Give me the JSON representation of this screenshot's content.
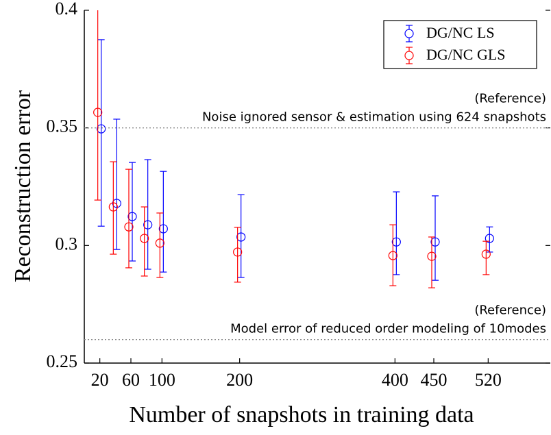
{
  "chart_data": {
    "type": "errorbar",
    "xlabel": "Number of snapshots in training data",
    "ylabel": "Reconstruction error",
    "x": [
      20,
      40,
      60,
      80,
      100,
      200,
      400,
      450,
      520
    ],
    "xlim": [
      0,
      600
    ],
    "xticks": [
      20,
      60,
      100,
      200,
      400,
      450,
      520
    ],
    "ylim": [
      0.25,
      0.4
    ],
    "yticks": [
      0.25,
      0.3,
      0.35,
      0.4
    ],
    "legend": "upper right",
    "series": [
      {
        "name": "DG/NC LS",
        "color": "#0000ff",
        "values": [
          0.3496,
          0.3179,
          0.3123,
          0.3088,
          0.3071,
          0.3036,
          0.3015,
          0.3015,
          0.303
        ],
        "upper": [
          0.3875,
          0.3537,
          0.3353,
          0.3365,
          0.3315,
          0.3216,
          0.3228,
          0.3211,
          0.3079
        ],
        "lower": [
          0.3082,
          0.2983,
          0.2934,
          0.2899,
          0.2887,
          0.2864,
          0.2876,
          0.2852,
          0.2972
        ]
      },
      {
        "name": "DG/NC GLS",
        "color": "#ff0000",
        "values": [
          0.3566,
          0.3164,
          0.3079,
          0.303,
          0.301,
          0.2972,
          0.2957,
          0.2954,
          0.2963
        ],
        "upper": [
          0.41,
          0.3356,
          0.3324,
          0.3164,
          0.3138,
          0.3077,
          0.3088,
          0.3036,
          0.3018
        ],
        "lower": [
          0.3193,
          0.2963,
          0.2905,
          0.287,
          0.2864,
          0.2844,
          0.2829,
          0.282,
          0.2876
        ]
      }
    ],
    "reference_lines": [
      {
        "value": 0.35,
        "lines": [
          "(Reference)",
          "Noise ignored sensor & estimation using 624 snapshots"
        ]
      },
      {
        "value": 0.26,
        "lines": [
          "(Reference)",
          "Model error of reduced order modeling of 10modes"
        ]
      }
    ]
  }
}
